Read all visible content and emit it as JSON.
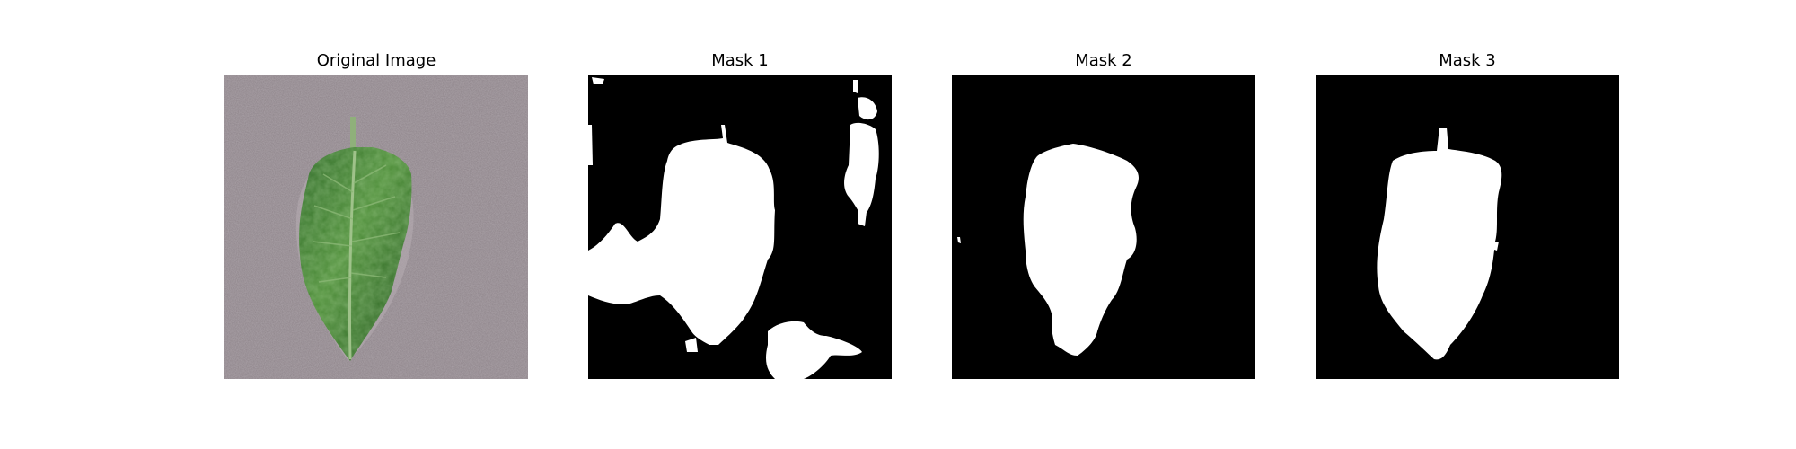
{
  "panels": [
    {
      "title": "Original Image",
      "content": "leaf-photo"
    },
    {
      "title": "Mask 1",
      "content": "segmentation-mask"
    },
    {
      "title": "Mask 2",
      "content": "segmentation-mask"
    },
    {
      "title": "Mask 3",
      "content": "segmentation-mask"
    }
  ],
  "colors": {
    "background": "#ffffff",
    "mask_background": "#000000",
    "mask_foreground": "#ffffff",
    "leaf_green": "#3f7a32",
    "photo_background": "#8d8389"
  }
}
